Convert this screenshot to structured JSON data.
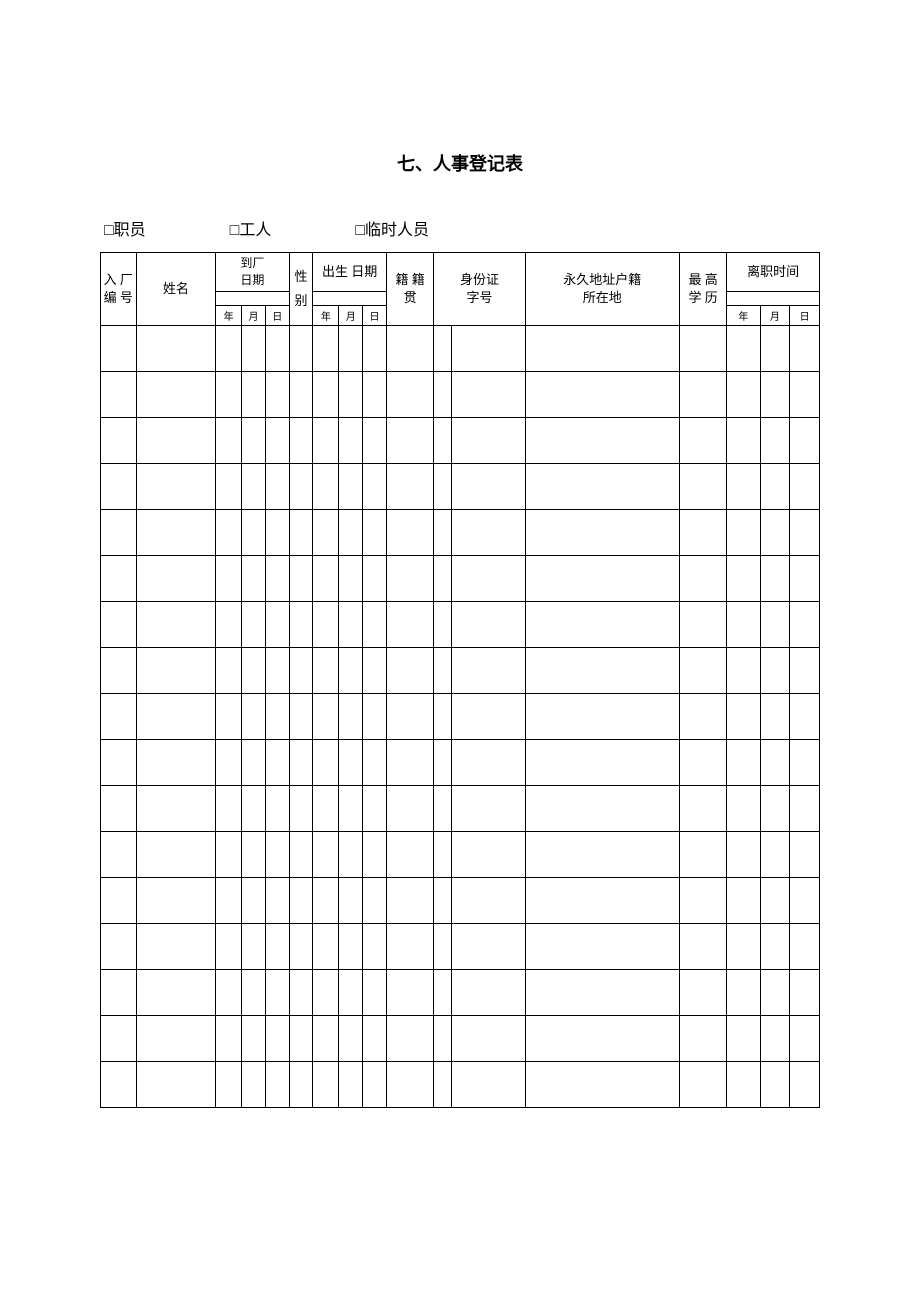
{
  "title": "七、人事登记表",
  "checkboxes": {
    "staff": "□职员",
    "worker": "□工人",
    "temporary": "□临时人员"
  },
  "headers": {
    "factory_number": "入 厂\n编 号",
    "name": "姓名",
    "arrival_date": "到厂\n日期",
    "gender": "性别",
    "birth_date": "出生 日期",
    "native_place": "籍 籍\n贯",
    "id_number": "身份证\n字号",
    "permanent_address": "永久地址户籍\n所在地",
    "education": "最 高\n学 历",
    "leave_time": "离职时间",
    "year": "年",
    "month": "月",
    "day": "日"
  },
  "table": {
    "num_data_rows": 17,
    "border_color": "#000000",
    "background_color": "#ffffff",
    "header_fontsize_main": 13,
    "header_fontsize_sub": 10,
    "data_row_height": 46
  }
}
